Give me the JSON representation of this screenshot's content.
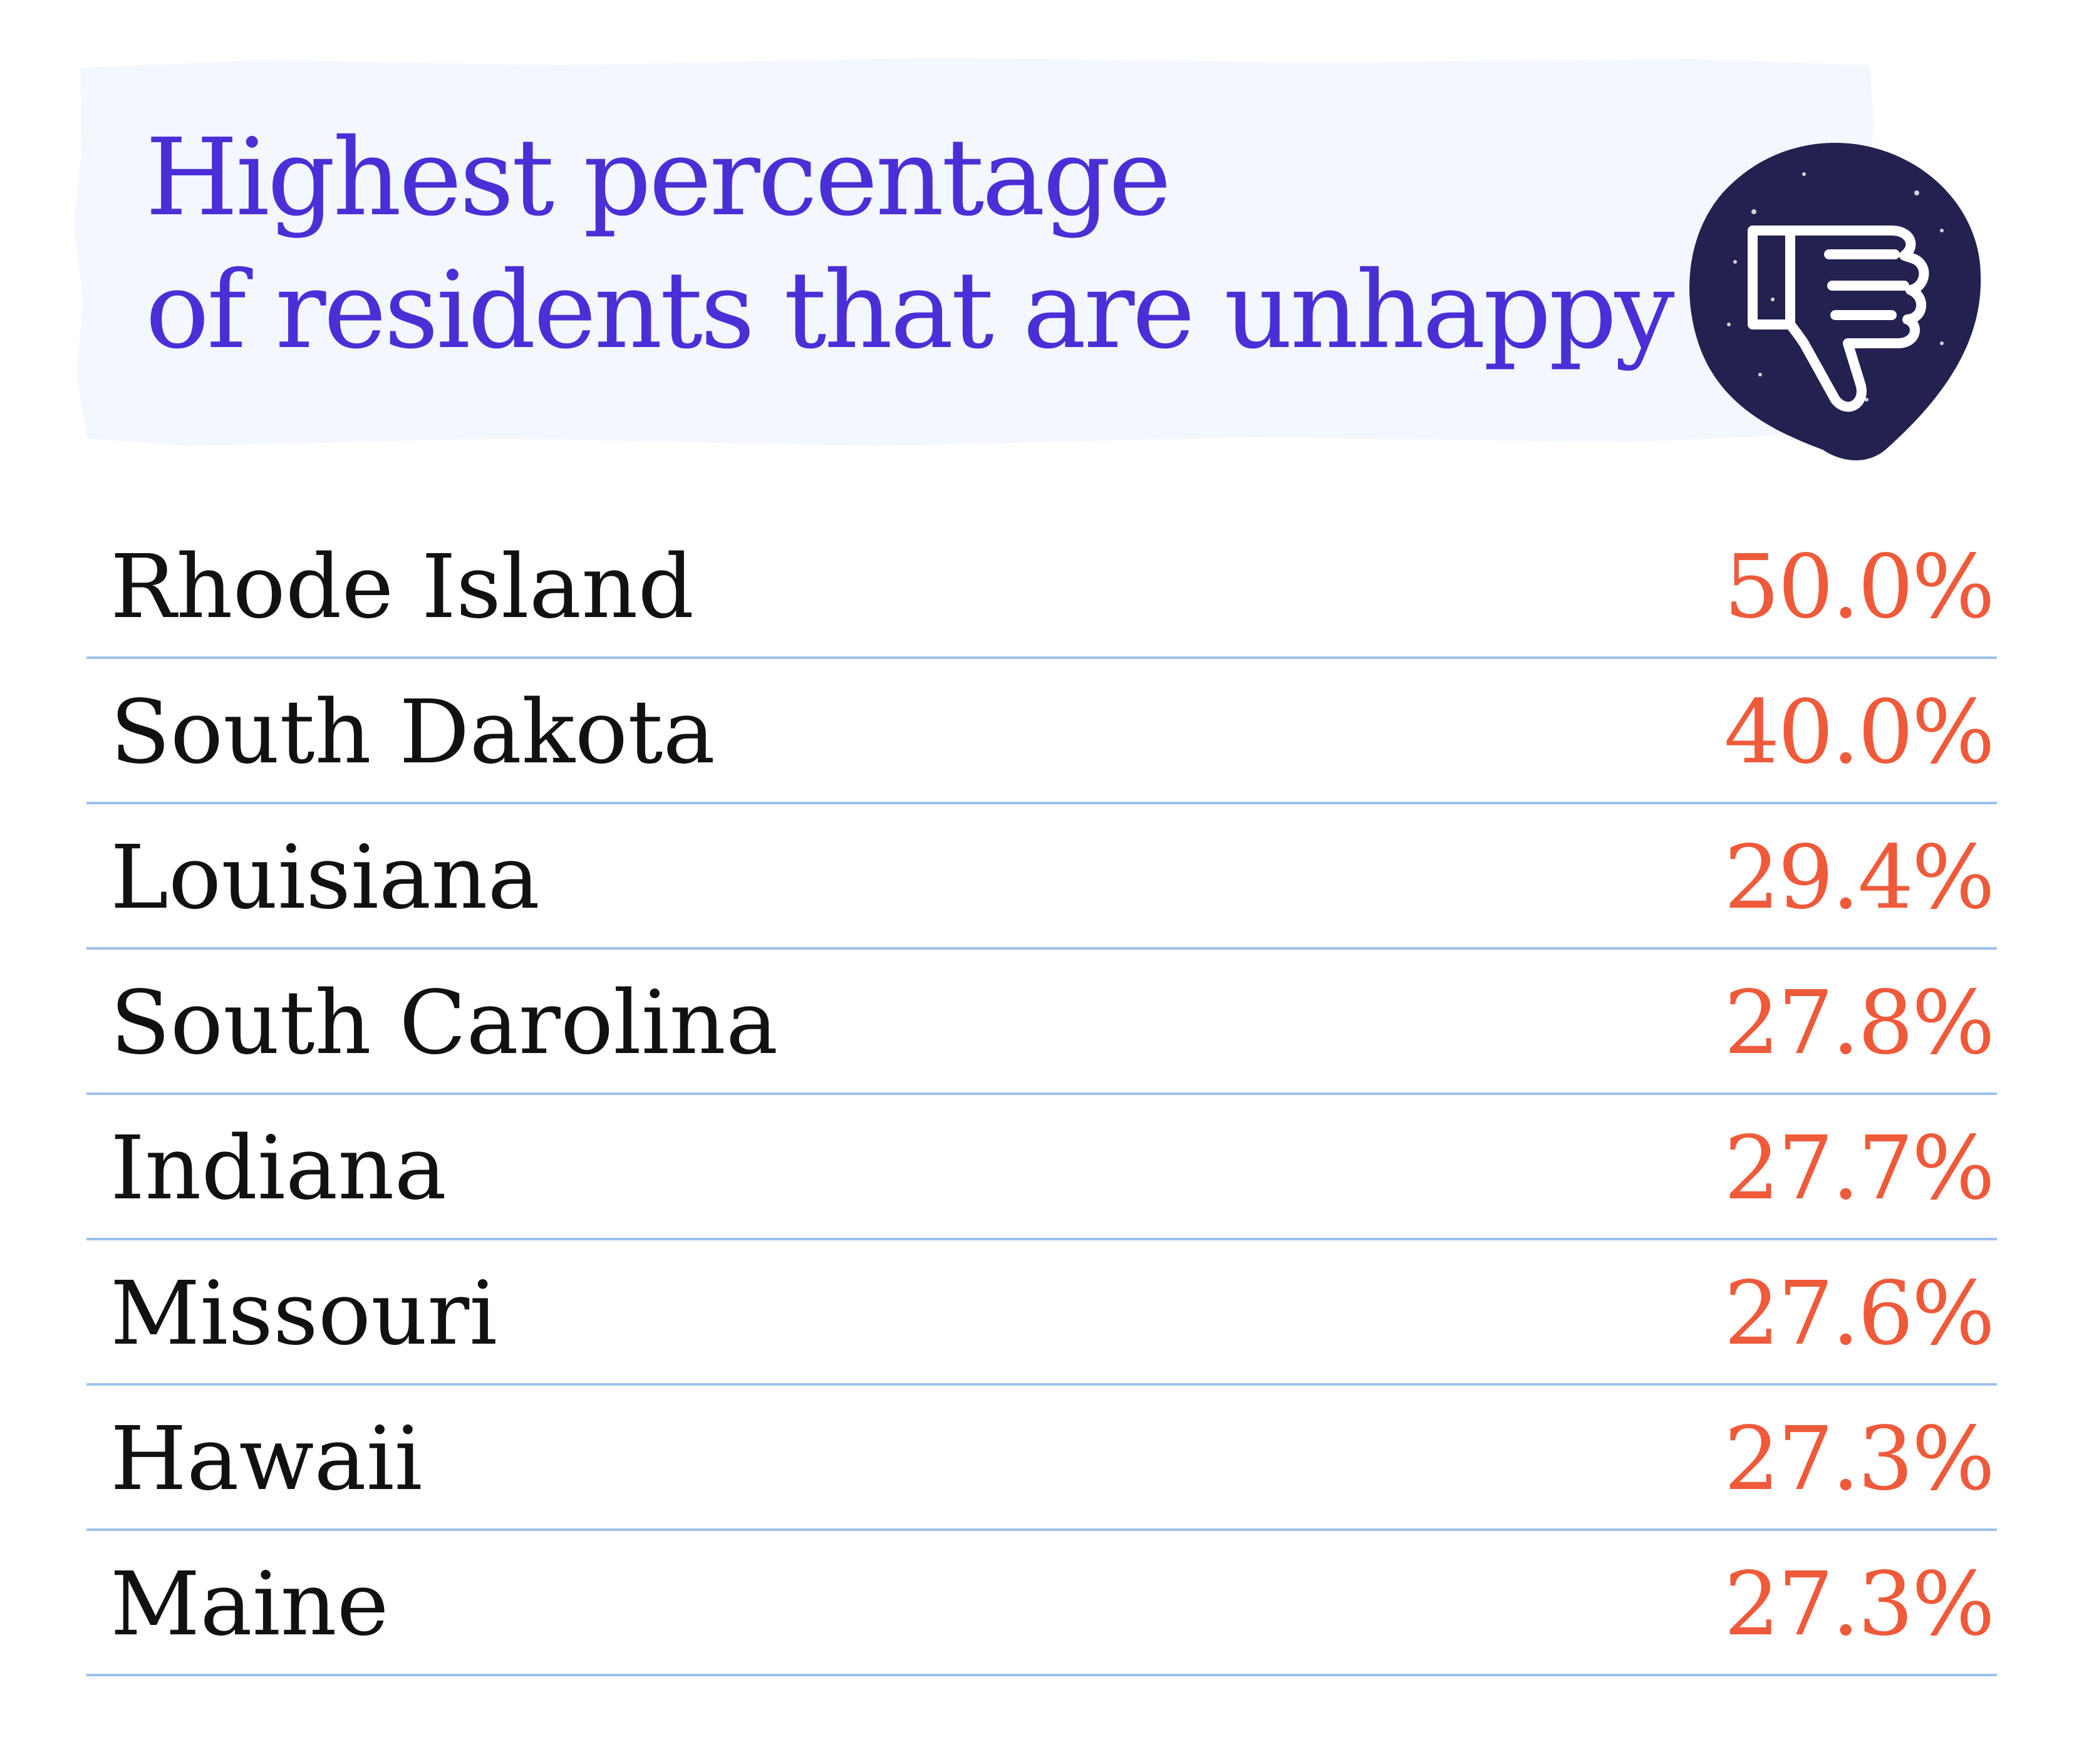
{
  "colors": {
    "title": "#4a2fd6",
    "title_background": "#f3f7fe",
    "value": "#ee5a3a",
    "label": "#111111",
    "divider": "#9bc1ef",
    "badge": "#232150",
    "badge_icon": "#ffffff"
  },
  "icons": {
    "badge": "thumbs-down-icon"
  },
  "chart_data": {
    "type": "table",
    "title": [
      "Highest percentage",
      "of residents that are unhappy"
    ],
    "rows": [
      {
        "state": "Rhode Island",
        "value": 50.0,
        "label": "50.0%"
      },
      {
        "state": "South Dakota",
        "value": 40.0,
        "label": "40.0%"
      },
      {
        "state": "Louisiana",
        "value": 29.4,
        "label": "29.4%"
      },
      {
        "state": "South Carolina",
        "value": 27.8,
        "label": "27.8%"
      },
      {
        "state": "Indiana",
        "value": 27.7,
        "label": "27.7%"
      },
      {
        "state": "Missouri",
        "value": 27.6,
        "label": "27.6%"
      },
      {
        "state": "Hawaii",
        "value": 27.3,
        "label": "27.3%"
      },
      {
        "state": "Maine",
        "value": 27.3,
        "label": "27.3%"
      }
    ]
  }
}
